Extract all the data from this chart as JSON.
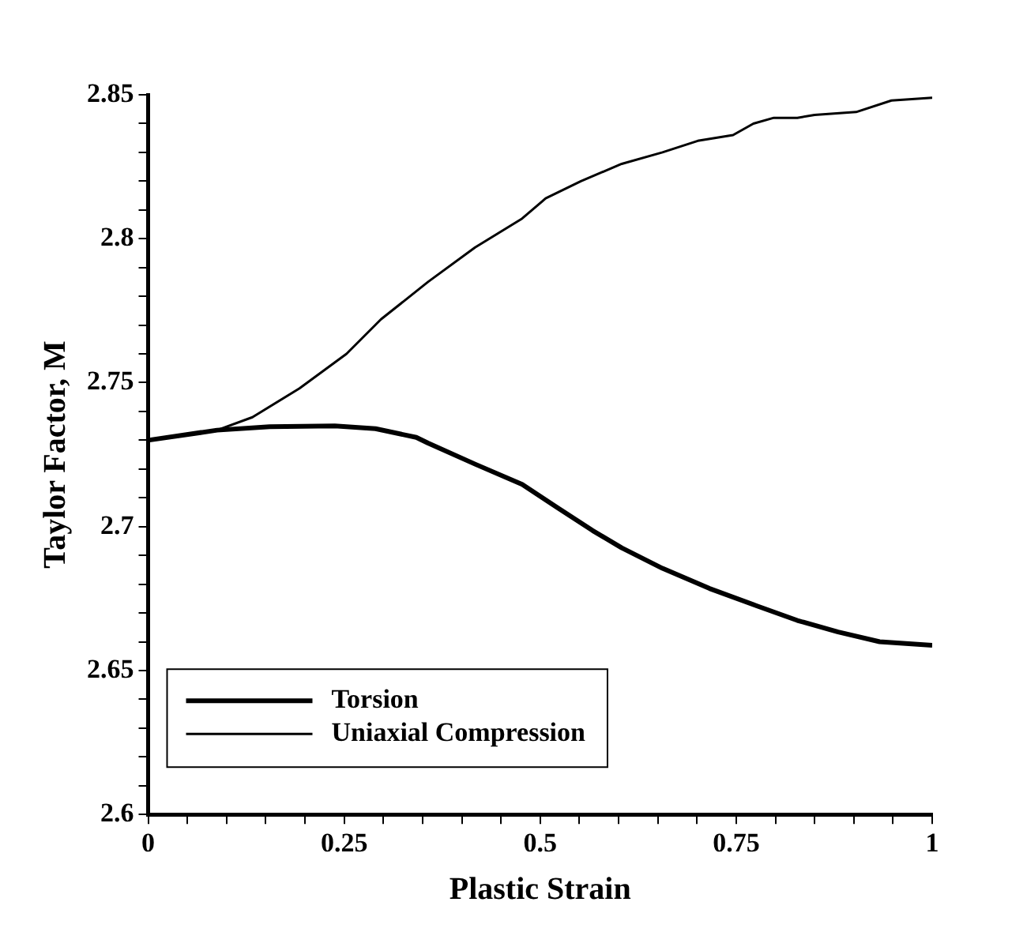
{
  "chart_data": {
    "type": "line",
    "xlabel": "Plastic Strain",
    "ylabel": "Taylor Factor, M",
    "xlim": [
      0,
      1
    ],
    "ylim": [
      2.6,
      2.85
    ],
    "xticks": [
      0,
      {
        "value": 0.05,
        "label": null
      },
      {
        "value": 0.1,
        "label": null
      },
      {
        "value": 0.15,
        "label": null
      },
      {
        "value": 0.2,
        "label": null
      },
      0.25,
      {
        "value": 0.3,
        "label": null
      },
      {
        "value": 0.35,
        "label": null
      },
      {
        "value": 0.4,
        "label": null
      },
      {
        "value": 0.45,
        "label": null
      },
      0.5,
      {
        "value": 0.55,
        "label": null
      },
      {
        "value": 0.6,
        "label": null
      },
      {
        "value": 0.65,
        "label": null
      },
      {
        "value": 0.7,
        "label": null
      },
      0.75,
      {
        "value": 0.8,
        "label": null
      },
      {
        "value": 0.85,
        "label": null
      },
      {
        "value": 0.9,
        "label": null
      },
      {
        "value": 0.95,
        "label": null
      },
      1
    ],
    "yticks": [
      2.6,
      {
        "value": 2.61,
        "label": null
      },
      {
        "value": 2.62,
        "label": null
      },
      {
        "value": 2.63,
        "label": null
      },
      {
        "value": 2.64,
        "label": null
      },
      2.65,
      {
        "value": 2.66,
        "label": null
      },
      {
        "value": 2.67,
        "label": null
      },
      {
        "value": 2.68,
        "label": null
      },
      {
        "value": 2.69,
        "label": null
      },
      2.7,
      {
        "value": 2.71,
        "label": null
      },
      {
        "value": 2.72,
        "label": null
      },
      {
        "value": 2.73,
        "label": null
      },
      {
        "value": 2.74,
        "label": null
      },
      2.75,
      {
        "value": 2.76,
        "label": null
      },
      {
        "value": 2.77,
        "label": null
      },
      {
        "value": 2.78,
        "label": null
      },
      {
        "value": 2.79,
        "label": null
      },
      2.8,
      {
        "value": 2.81,
        "label": null
      },
      {
        "value": 2.82,
        "label": null
      },
      {
        "value": 2.83,
        "label": null
      },
      {
        "value": 2.84,
        "label": null
      },
      2.85
    ],
    "grid": false,
    "legend": "bottom left",
    "marker": "none",
    "line_style": "solid",
    "series": [
      {
        "name": "Torsion",
        "color": "#000000",
        "x": [
          0,
          0.088,
          0.155,
          0.238,
          0.29,
          0.342,
          0.357,
          0.417,
          0.477,
          0.522,
          0.567,
          0.604,
          0.656,
          0.716,
          0.776,
          0.828,
          0.88,
          0.933,
          1
        ],
        "values": [
          2.73,
          2.7335,
          2.7347,
          2.735,
          2.734,
          2.731,
          2.729,
          2.7217,
          2.7147,
          2.7066,
          2.6986,
          2.6926,
          2.6855,
          2.6785,
          2.6725,
          2.6674,
          2.6634,
          2.66,
          2.6588
        ]
      },
      {
        "name": "Uniaxial Compression",
        "color": "#000000",
        "x": [
          0,
          0.088,
          0.133,
          0.193,
          0.253,
          0.297,
          0.357,
          0.417,
          0.447,
          0.477,
          0.507,
          0.552,
          0.604,
          0.656,
          0.701,
          0.746,
          0.772,
          0.798,
          0.828,
          0.85,
          0.903,
          0.948,
          1
        ],
        "values": [
          2.73,
          2.7335,
          2.738,
          2.748,
          2.76,
          2.772,
          2.785,
          2.797,
          2.802,
          2.807,
          2.814,
          2.82,
          2.826,
          2.83,
          2.834,
          2.836,
          2.84,
          2.842,
          2.842,
          2.843,
          2.844,
          2.848,
          2.849
        ]
      }
    ]
  }
}
